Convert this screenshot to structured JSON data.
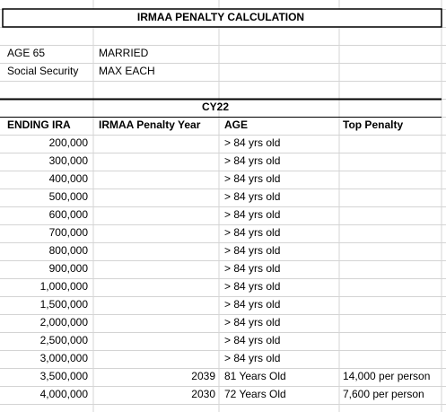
{
  "title": "IRMAA PENALTY CALCULATION",
  "info": [
    [
      "AGE 65",
      "MARRIED"
    ],
    [
      "Social Security",
      "MAX EACH"
    ]
  ],
  "year_label": "CY22",
  "headers": [
    "ENDING IRA",
    "IRMAA Penalty Year",
    "AGE",
    "Top Penalty"
  ],
  "rows": [
    {
      "ending_ira": "200,000",
      "age": "> 84 yrs old"
    },
    {
      "ending_ira": "300,000",
      "age": "> 84 yrs old"
    },
    {
      "ending_ira": "400,000",
      "age": "> 84 yrs old"
    },
    {
      "ending_ira": "500,000",
      "age": "> 84 yrs old"
    },
    {
      "ending_ira": "600,000",
      "age": "> 84 yrs old"
    },
    {
      "ending_ira": "700,000",
      "age": "> 84 yrs old"
    },
    {
      "ending_ira": "800,000",
      "age": "> 84 yrs old"
    },
    {
      "ending_ira": "900,000",
      "age": "> 84 yrs old"
    },
    {
      "ending_ira": "1,000,000",
      "age": "> 84 yrs old"
    },
    {
      "ending_ira": "1,500,000",
      "age": "> 84 yrs old"
    },
    {
      "ending_ira": "2,000,000",
      "age": "> 84 yrs old"
    },
    {
      "ending_ira": "2,500,000",
      "age": "> 84 yrs old"
    },
    {
      "ending_ira": "3,000,000",
      "age": "> 84 yrs old"
    },
    {
      "ending_ira": "3,500,000",
      "penalty_year": "2039",
      "age": "81 Years Old",
      "top_penalty": "14,000 per person"
    },
    {
      "ending_ira": "4,000,000",
      "penalty_year": "2030",
      "age": "72 Years Old",
      "top_penalty": "7,600 per person"
    }
  ]
}
